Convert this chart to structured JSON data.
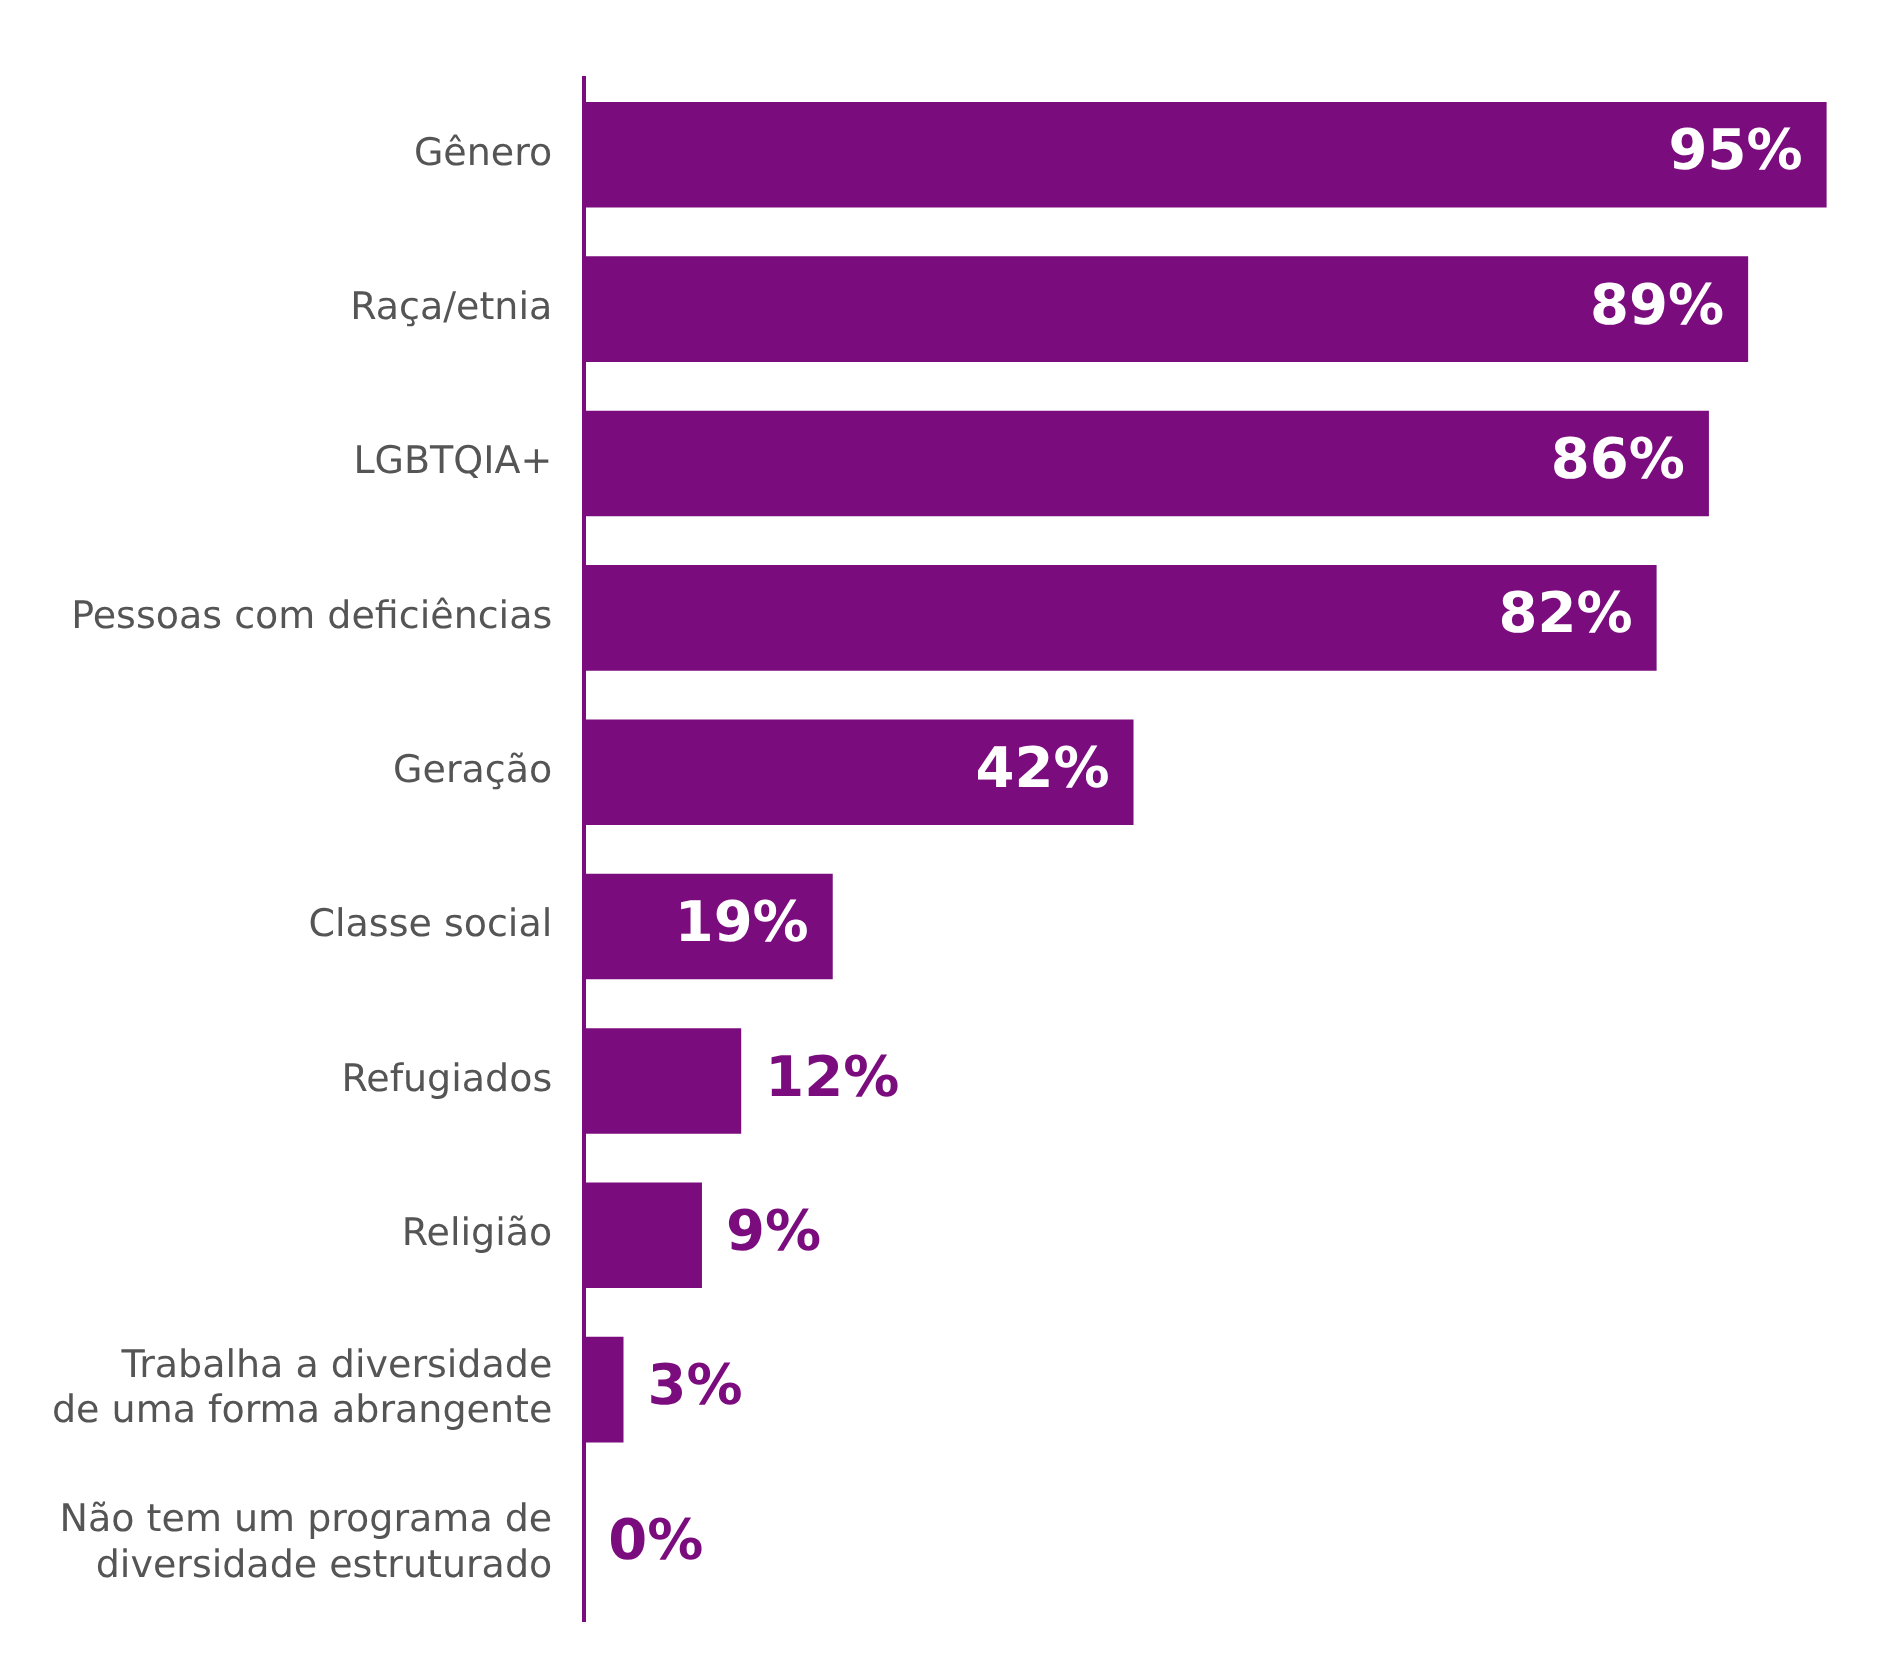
{
  "chart_data": {
    "type": "bar",
    "orientation": "horizontal",
    "categories": [
      "Gênero",
      "Raça/etnia",
      "LGBTQIA+",
      "Pessoas com deficiências",
      "Geração",
      "Classe social",
      "Refugiados",
      "Religião",
      "Trabalha a diversidade de uma forma abrangente",
      "Não tem um programa de diversidade estruturado"
    ],
    "values": [
      95,
      89,
      86,
      82,
      42,
      19,
      12,
      9,
      3,
      0
    ],
    "value_labels": [
      "95%",
      "89%",
      "86%",
      "82%",
      "42%",
      "19%",
      "12%",
      "9%",
      "3%",
      "0%"
    ],
    "color": "#7b0c7e",
    "grid": false,
    "legend": false
  }
}
